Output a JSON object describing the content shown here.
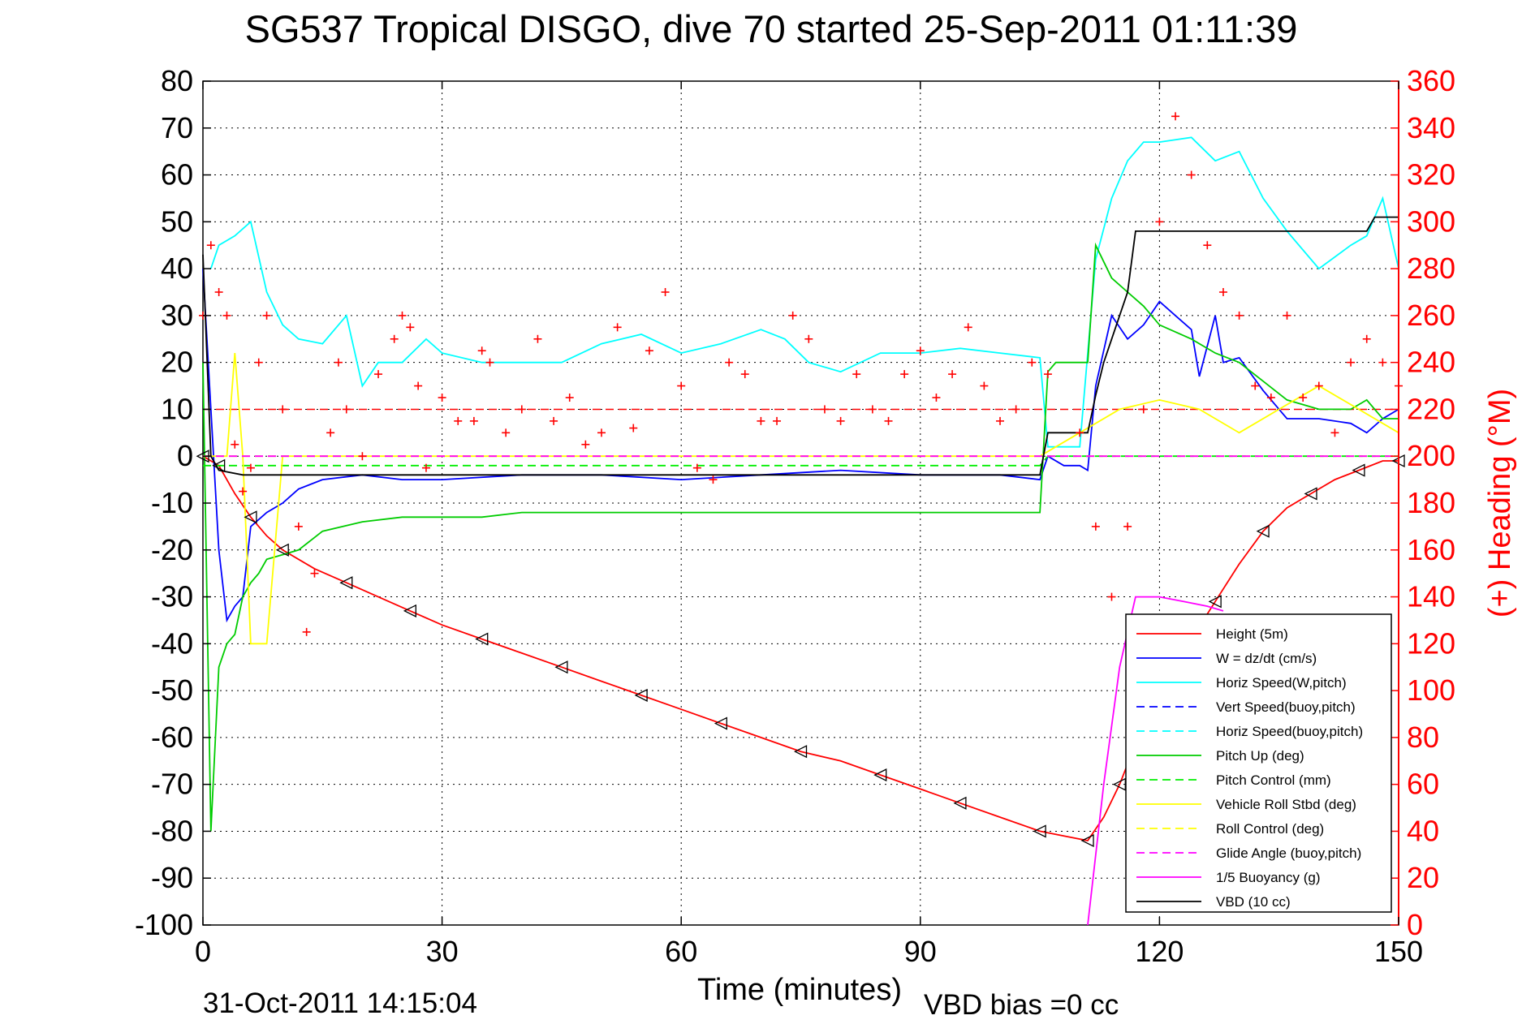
{
  "title": "SG537 Tropical DISGO, dive 70 started 25-Sep-2011 01:11:39",
  "footer": {
    "date": "31-Oct-2011 14:15:04",
    "vbd_bias": "VBD bias =0 cc"
  },
  "chart_data": {
    "type": "line",
    "xlabel": "Time (minutes)",
    "ylabel": "",
    "y2label": "(+) Heading (°M)",
    "xlim": [
      0,
      150
    ],
    "ylim": [
      -100,
      80
    ],
    "y2lim": [
      0,
      360
    ],
    "xticks": [
      0,
      30,
      60,
      90,
      120,
      150
    ],
    "yticks": [
      80,
      70,
      60,
      50,
      40,
      30,
      20,
      10,
      0,
      -10,
      -20,
      -30,
      -40,
      -50,
      -60,
      -70,
      -80,
      -90,
      -100
    ],
    "y2ticks": [
      360,
      340,
      320,
      300,
      280,
      260,
      240,
      220,
      200,
      180,
      160,
      140,
      120,
      100,
      80,
      60,
      40,
      20,
      0
    ],
    "grid": true,
    "legend_position": "bottom-right",
    "colors": {
      "height": "#ff0000",
      "w": "#0000ff",
      "horiz_w": "#00ffff",
      "vert_buoy": "#0000ff",
      "horiz_buoy": "#00ffff",
      "pitch_up": "#00cc00",
      "pitch_ctl": "#00ee00",
      "roll": "#ffff00",
      "roll_ctl": "#ffff00",
      "glide": "#ff00ff",
      "buoy": "#ff00ff",
      "vbd": "#000000",
      "heading": "#ff0000",
      "right_axis": "#ff0000"
    },
    "series": [
      {
        "name": "Height (5m)",
        "key": "height",
        "style": "solid",
        "x": [
          0,
          1,
          2,
          4,
          6,
          8,
          10,
          14,
          18,
          22,
          26,
          30,
          35,
          40,
          45,
          50,
          55,
          60,
          65,
          70,
          75,
          80,
          85,
          90,
          95,
          100,
          105,
          108,
          111,
          113,
          115,
          118,
          121,
          124,
          127,
          130,
          133,
          136,
          139,
          142,
          145,
          148,
          150
        ],
        "y": [
          0,
          -1,
          -2,
          -8,
          -13,
          -17,
          -20,
          -24,
          -27,
          -30,
          -33,
          -36,
          -39,
          -42,
          -45,
          -48,
          -51,
          -54,
          -57,
          -60,
          -63,
          -65,
          -68,
          -71,
          -74,
          -77,
          -80,
          -81,
          -82,
          -77,
          -70,
          -57,
          -48,
          -39,
          -31,
          -23,
          -16,
          -11,
          -8,
          -5,
          -3,
          -1,
          -1
        ]
      },
      {
        "name": "W = dz/dt (cm/s)",
        "key": "w",
        "style": "solid",
        "x": [
          0,
          1,
          2,
          3,
          4,
          5,
          6,
          8,
          10,
          12,
          15,
          20,
          25,
          30,
          40,
          50,
          60,
          70,
          80,
          90,
          100,
          105,
          106,
          108,
          110,
          111,
          112,
          114,
          116,
          118,
          120,
          122,
          124,
          125,
          127,
          128,
          130,
          133,
          136,
          140,
          144,
          146,
          148,
          150
        ],
        "y": [
          40,
          10,
          -20,
          -35,
          -32,
          -30,
          -15,
          -12,
          -10,
          -7,
          -5,
          -4,
          -5,
          -5,
          -4,
          -4,
          -5,
          -4,
          -3,
          -4,
          -4,
          -5,
          0,
          -2,
          -2,
          -3,
          15,
          30,
          25,
          28,
          33,
          30,
          27,
          17,
          30,
          20,
          21,
          14,
          8,
          8,
          7,
          5,
          8,
          10
        ]
      },
      {
        "name": "Horiz Speed(W,pitch)",
        "key": "horiz_w",
        "style": "solid",
        "x": [
          1,
          2,
          4,
          6,
          8,
          10,
          12,
          15,
          18,
          20,
          22,
          25,
          28,
          30,
          35,
          40,
          45,
          50,
          55,
          60,
          65,
          70,
          73,
          76,
          80,
          85,
          90,
          95,
          100,
          105,
          106,
          108,
          110,
          112,
          114,
          116,
          118,
          120,
          124,
          127,
          130,
          133,
          136,
          140,
          144,
          146,
          148,
          150
        ],
        "y": [
          40,
          45,
          47,
          50,
          35,
          28,
          25,
          24,
          30,
          15,
          20,
          20,
          25,
          22,
          20,
          20,
          20,
          24,
          26,
          22,
          24,
          27,
          25,
          20,
          18,
          22,
          22,
          23,
          22,
          21,
          2,
          2,
          2,
          42,
          55,
          63,
          67,
          67,
          68,
          63,
          65,
          55,
          48,
          40,
          45,
          47,
          55,
          40
        ]
      },
      {
        "name": "Vert Speed(buoy,pitch)",
        "key": "vert_buoy",
        "style": "dashed",
        "x": [],
        "y": []
      },
      {
        "name": "Horiz Speed(buoy,pitch)",
        "key": "horiz_buoy",
        "style": "dashed",
        "x": [],
        "y": []
      },
      {
        "name": "Pitch Up (deg)",
        "key": "pitch_up",
        "style": "solid",
        "x": [
          0,
          1,
          2,
          3,
          4,
          5,
          6,
          7,
          8,
          10,
          12,
          15,
          20,
          25,
          30,
          35,
          40,
          50,
          60,
          70,
          80,
          90,
          100,
          105,
          106,
          107,
          110,
          111,
          112,
          114,
          116,
          118,
          120,
          124,
          127,
          130,
          133,
          136,
          140,
          144,
          146,
          148,
          150
        ],
        "y": [
          20,
          -80,
          -45,
          -40,
          -38,
          -30,
          -27,
          -25,
          -22,
          -21,
          -20,
          -16,
          -14,
          -13,
          -13,
          -13,
          -12,
          -12,
          -12,
          -12,
          -12,
          -12,
          -12,
          -12,
          18,
          20,
          20,
          20,
          45,
          38,
          35,
          32,
          28,
          25,
          22,
          20,
          16,
          12,
          10,
          10,
          12,
          8,
          8
        ]
      },
      {
        "name": "Pitch Control (mm)",
        "key": "pitch_ctl",
        "style": "dashed",
        "x": [
          0,
          10,
          30,
          60,
          90,
          105,
          106,
          111,
          112,
          150
        ],
        "y": [
          -2,
          -2,
          -2,
          -2,
          -2,
          -2,
          0,
          0,
          0,
          0
        ]
      },
      {
        "name": "Vehicle Roll Stbd (deg)",
        "key": "roll",
        "style": "solid",
        "x": [
          0,
          3,
          4,
          5,
          6,
          8,
          10,
          15,
          20,
          25,
          30,
          35,
          40,
          50,
          60,
          70,
          80,
          90,
          100,
          105,
          110,
          115,
          120,
          125,
          130,
          135,
          140,
          145,
          150
        ],
        "y": [
          0,
          0,
          22,
          0,
          -40,
          -40,
          0,
          0,
          0,
          0,
          0,
          0,
          0,
          0,
          0,
          0,
          0,
          0,
          0,
          0,
          5,
          10,
          12,
          10,
          5,
          10,
          15,
          10,
          5
        ]
      },
      {
        "name": "Roll Control (deg)",
        "key": "roll_ctl",
        "style": "dashed",
        "x": [
          0,
          150
        ],
        "y": [
          0,
          0
        ]
      },
      {
        "name": "Glide Angle (buoy,pitch)",
        "key": "glide",
        "style": "dashed",
        "x": [
          0,
          150
        ],
        "y": [
          0,
          0
        ]
      },
      {
        "name": "1/5 Buoyancy (g)",
        "key": "buoy",
        "style": "solid",
        "x": [
          111,
          113,
          115,
          117,
          120,
          123,
          126,
          128
        ],
        "y": [
          -100,
          -70,
          -45,
          -30,
          -30,
          -31,
          -32,
          -33
        ]
      },
      {
        "name": "VBD (10 cc)",
        "key": "vbd",
        "style": "solid",
        "x": [
          0,
          1,
          2,
          5,
          10,
          30,
          60,
          90,
          100,
          104,
          105,
          106,
          107,
          110,
          111,
          112,
          113,
          114,
          115,
          116,
          117,
          120,
          125,
          130,
          135,
          140,
          145,
          146,
          147,
          150
        ],
        "y": [
          43,
          0,
          -3,
          -4,
          -4,
          -4,
          -4,
          -4,
          -4,
          -4,
          -4,
          5,
          5,
          5,
          5,
          13,
          20,
          25,
          30,
          35,
          48,
          48,
          48,
          48,
          48,
          48,
          48,
          48,
          51,
          51
        ]
      }
    ],
    "heading": {
      "name": "(+) Heading",
      "x": [
        0,
        1,
        2,
        3,
        4,
        5,
        6,
        7,
        8,
        10,
        12,
        13,
        14,
        16,
        17,
        18,
        20,
        22,
        24,
        25,
        26,
        27,
        28,
        30,
        32,
        34,
        35,
        36,
        38,
        40,
        42,
        44,
        46,
        48,
        50,
        52,
        54,
        56,
        58,
        60,
        62,
        64,
        66,
        68,
        70,
        72,
        74,
        76,
        78,
        80,
        82,
        84,
        86,
        88,
        90,
        92,
        94,
        96,
        98,
        100,
        102,
        104,
        106,
        110,
        112,
        114,
        116,
        118,
        120,
        122,
        124,
        126,
        128,
        130,
        132,
        134,
        136,
        138,
        140,
        142,
        144,
        146,
        148,
        150
      ],
      "y": [
        260,
        290,
        270,
        260,
        205,
        185,
        195,
        240,
        260,
        220,
        170,
        125,
        150,
        210,
        240,
        220,
        200,
        235,
        250,
        260,
        255,
        230,
        195,
        225,
        215,
        215,
        245,
        240,
        210,
        220,
        250,
        215,
        225,
        205,
        210,
        255,
        212,
        245,
        270,
        230,
        195,
        190,
        240,
        235,
        215,
        215,
        260,
        250,
        220,
        215,
        235,
        220,
        215,
        235,
        245,
        225,
        235,
        255,
        230,
        215,
        220,
        240,
        235,
        210,
        170,
        140,
        170,
        220,
        300,
        345,
        320,
        290,
        270,
        260,
        230,
        225,
        260,
        225,
        230,
        210,
        240,
        250,
        240,
        230
      ]
    }
  }
}
